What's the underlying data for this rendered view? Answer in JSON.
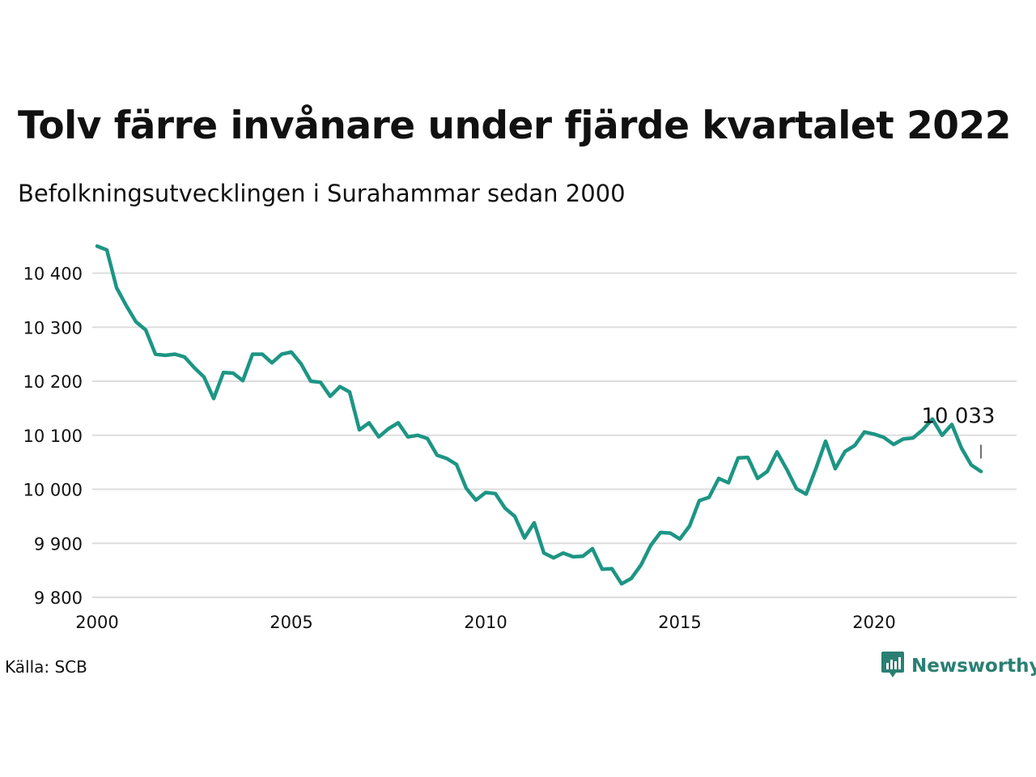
{
  "header": {
    "title": "Tolv färre invånare under fjärde kvartalet 2022",
    "subtitle": "Befolkningsutvecklingen i Surahammar sedan 2000"
  },
  "footer": {
    "source": "Källa: SCB",
    "brand": "Newsworthy",
    "brand_icon": "chart-speech-bubble-icon"
  },
  "colors": {
    "line": "#1d9584",
    "grid": "#dddddd",
    "brand": "#2a7f73"
  },
  "chart_data": {
    "type": "line",
    "title": "Tolv färre invånare under fjärde kvartalet 2022",
    "subtitle": "Befolkningsutvecklingen i Surahammar sedan 2000",
    "xlabel": "",
    "ylabel": "",
    "xlim": [
      2000,
      2023.5
    ],
    "ylim": [
      9790,
      10460
    ],
    "x_ticks": [
      2000,
      2005,
      2010,
      2015,
      2020
    ],
    "x_tick_labels": [
      "2000",
      "2005",
      "2010",
      "2015",
      "2020"
    ],
    "y_ticks": [
      9800,
      9900,
      10000,
      10100,
      10200,
      10300,
      10400
    ],
    "y_tick_labels": [
      "9 800",
      "9 900",
      "10 000",
      "10 100",
      "10 200",
      "10 300",
      "10 400"
    ],
    "grid": "horizontal",
    "legend": "none",
    "annotation": {
      "x": 2022.75,
      "y": 10033,
      "text": "10 033"
    },
    "series": [
      {
        "x_start": 2000.0,
        "x_step": 0.25,
        "values": [
          10450,
          10443,
          10373,
          10340,
          10310,
          10295,
          10250,
          10248,
          10250,
          10245,
          10225,
          10208,
          10168,
          10216,
          10215,
          10201,
          10250,
          10250,
          10234,
          10250,
          10254,
          10232,
          10200,
          10198,
          10172,
          10190,
          10180,
          10110,
          10123,
          10097,
          10112,
          10123,
          10097,
          10100,
          10094,
          10063,
          10057,
          10046,
          10002,
          9980,
          9994,
          9992,
          9965,
          9950,
          9910,
          9938,
          9882,
          9873,
          9882,
          9875,
          9876,
          9890,
          9852,
          9853,
          9825,
          9835,
          9860,
          9896,
          9920,
          9919,
          9908,
          9932,
          9979,
          9985,
          10020,
          10012,
          10058,
          10059,
          10020,
          10033,
          10069,
          10037,
          10001,
          9991,
          10038,
          10089,
          10038,
          10070,
          10081,
          10106,
          10102,
          10096,
          10083,
          10093,
          10095,
          10110,
          10130,
          10100,
          10120,
          10076,
          10045,
          10033
        ]
      }
    ]
  }
}
